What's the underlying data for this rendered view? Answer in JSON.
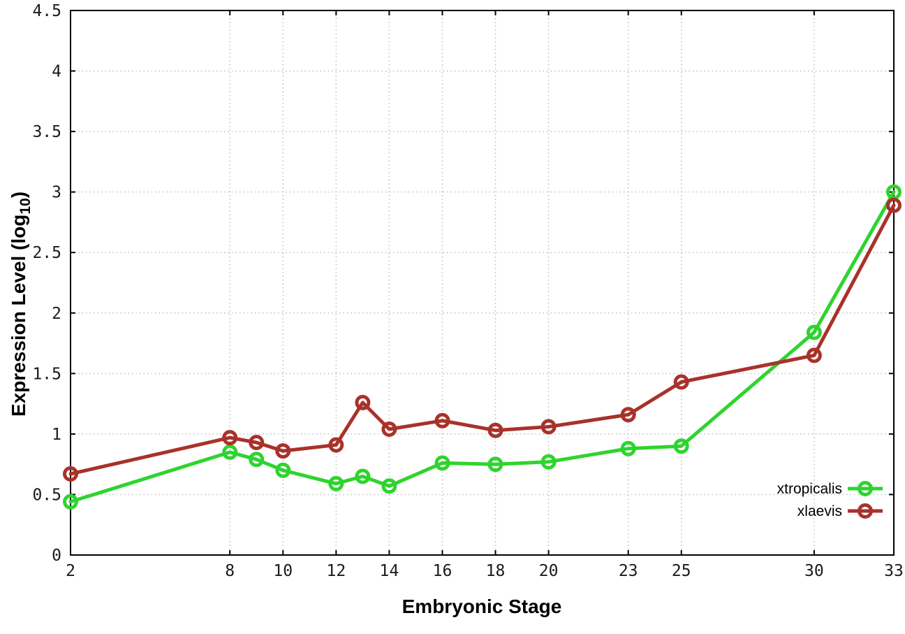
{
  "labels": {
    "xlabel": "Embryonic Stage",
    "ylabel_main": "Expression Level (log",
    "ylabel_sub": "10",
    "ylabel_close": ")"
  },
  "chart_data": {
    "type": "line",
    "title": "",
    "xlabel": "Embryonic Stage",
    "ylabel": "Expression Level (log10)",
    "x": [
      2,
      8,
      9,
      10,
      12,
      13,
      14,
      16,
      18,
      20,
      23,
      25,
      30,
      33
    ],
    "series": [
      {
        "name": "xtropicalis",
        "color": "#2ed42e",
        "values": [
          0.44,
          0.85,
          0.79,
          0.7,
          0.59,
          0.65,
          0.57,
          0.76,
          0.75,
          0.77,
          0.88,
          0.9,
          1.84,
          3.0
        ]
      },
      {
        "name": "xlaevis",
        "color": "#a8322a",
        "values": [
          0.67,
          0.97,
          0.93,
          0.86,
          0.91,
          1.26,
          1.04,
          1.11,
          1.03,
          1.06,
          1.16,
          1.43,
          1.65,
          2.89
        ]
      }
    ],
    "xlim": [
      2,
      33
    ],
    "ylim": [
      0,
      4.5
    ],
    "xticks": [
      2,
      8,
      10,
      12,
      14,
      16,
      18,
      20,
      23,
      25,
      30,
      33
    ],
    "xtick_labels": [
      "2",
      "8",
      "10",
      "12",
      "14",
      "16",
      "18",
      "20",
      "23",
      "25",
      "30",
      "33"
    ],
    "yticks": [
      0,
      0.5,
      1,
      1.5,
      2,
      2.5,
      3,
      3.5,
      4,
      4.5
    ],
    "ytick_labels": [
      "0",
      "0.5",
      "1",
      "1.5",
      "2",
      "2.5",
      "3",
      "3.5",
      "4",
      "4.5"
    ],
    "grid": true,
    "grid_color": "#bcbcbc",
    "axis_color": "#000000",
    "marker": "open-circle",
    "line_width": 5,
    "marker_radius": 8.5,
    "legend_position": "inside-bottom-right"
  }
}
